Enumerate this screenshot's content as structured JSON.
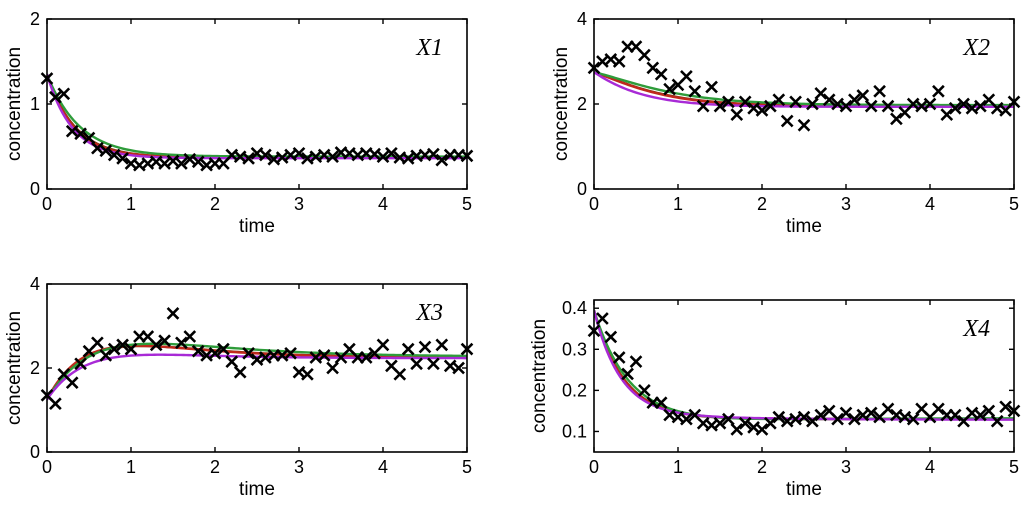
{
  "figure": {
    "background": "#ffffff"
  },
  "series_colors": {
    "red": "#c0281c",
    "green": "#2e9c3a",
    "brown": "#7a3b12",
    "purple": "#a82ad6",
    "data": "#000000"
  },
  "chart_data": [
    {
      "type": "line",
      "title": "X1",
      "xlabel": "time",
      "ylabel": "concentration",
      "xlim": [
        0,
        5
      ],
      "ylim": [
        0,
        2
      ],
      "xticks": [
        "0",
        "1",
        "2",
        "3",
        "4",
        "5"
      ],
      "yticks": [
        "0",
        "1",
        "2"
      ],
      "fit": {
        "y0": 1.35,
        "ye": 0.37,
        "k": 3.0,
        "ov": 0.0,
        "w": 0.0
      },
      "scatter": {
        "x": [
          0.0,
          0.1,
          0.2,
          0.3,
          0.4,
          0.5,
          0.6,
          0.7,
          0.8,
          0.9,
          1.0,
          1.1,
          1.2,
          1.3,
          1.4,
          1.5,
          1.6,
          1.7,
          1.8,
          1.9,
          2.0,
          2.1,
          2.2,
          2.3,
          2.4,
          2.5,
          2.6,
          2.7,
          2.8,
          2.9,
          3.0,
          3.1,
          3.2,
          3.3,
          3.4,
          3.5,
          3.6,
          3.7,
          3.8,
          3.9,
          4.0,
          4.1,
          4.2,
          4.3,
          4.4,
          4.5,
          4.6,
          4.7,
          4.8,
          4.9,
          5.0
        ],
        "y": [
          1.3,
          1.08,
          1.12,
          0.68,
          0.65,
          0.6,
          0.48,
          0.45,
          0.4,
          0.36,
          0.3,
          0.28,
          0.3,
          0.32,
          0.3,
          0.33,
          0.3,
          0.35,
          0.32,
          0.28,
          0.3,
          0.3,
          0.4,
          0.38,
          0.36,
          0.42,
          0.4,
          0.35,
          0.37,
          0.4,
          0.42,
          0.36,
          0.38,
          0.4,
          0.38,
          0.43,
          0.42,
          0.4,
          0.42,
          0.41,
          0.38,
          0.42,
          0.37,
          0.36,
          0.39,
          0.4,
          0.41,
          0.34,
          0.4,
          0.4,
          0.39
        ]
      }
    },
    {
      "type": "line",
      "title": "X2",
      "xlabel": "time",
      "ylabel": "concentration",
      "xlim": [
        0,
        5
      ],
      "ylim": [
        0,
        4
      ],
      "xticks": [
        "0",
        "1",
        "2",
        "3",
        "4",
        "5"
      ],
      "yticks": [
        "0",
        "2",
        "4"
      ],
      "fit": {
        "y0": 2.75,
        "ye": 1.95,
        "k": 2.2,
        "ov": 1.1,
        "w": 0.0
      },
      "scatter": {
        "x": [
          0.0,
          0.1,
          0.2,
          0.3,
          0.4,
          0.5,
          0.6,
          0.7,
          0.8,
          0.9,
          1.0,
          1.1,
          1.2,
          1.3,
          1.4,
          1.5,
          1.6,
          1.7,
          1.8,
          1.9,
          2.0,
          2.1,
          2.2,
          2.3,
          2.4,
          2.5,
          2.6,
          2.7,
          2.8,
          2.9,
          3.0,
          3.1,
          3.2,
          3.3,
          3.4,
          3.5,
          3.6,
          3.7,
          3.8,
          3.9,
          4.0,
          4.1,
          4.2,
          4.3,
          4.4,
          4.5,
          4.6,
          4.7,
          4.8,
          4.9,
          5.0
        ],
        "y": [
          2.85,
          3.0,
          3.05,
          3.0,
          3.35,
          3.35,
          3.15,
          2.85,
          2.7,
          2.35,
          2.45,
          2.65,
          2.3,
          1.95,
          2.4,
          1.95,
          2.05,
          1.75,
          2.05,
          1.9,
          1.85,
          1.95,
          2.1,
          1.6,
          2.05,
          1.5,
          2.0,
          2.25,
          2.1,
          2.0,
          1.95,
          2.1,
          2.2,
          1.95,
          2.3,
          1.95,
          1.65,
          1.8,
          2.0,
          1.95,
          2.0,
          2.3,
          1.75,
          1.9,
          2.0,
          1.9,
          1.95,
          2.1,
          1.9,
          1.85,
          2.05
        ]
      }
    },
    {
      "type": "line",
      "title": "X3",
      "xlabel": "time",
      "ylabel": "concentration",
      "xlim": [
        0,
        5
      ],
      "ylim": [
        0,
        4
      ],
      "xticks": [
        "0",
        "1",
        "2",
        "3",
        "4",
        "5"
      ],
      "yticks": [
        "0",
        "2",
        "4"
      ],
      "fit": {
        "y0": 1.25,
        "ye": 2.25,
        "k": 1.5,
        "ov": 2.2,
        "w": 0.0
      },
      "scatter": {
        "x": [
          0.0,
          0.1,
          0.2,
          0.3,
          0.4,
          0.5,
          0.6,
          0.7,
          0.8,
          0.9,
          1.0,
          1.1,
          1.2,
          1.3,
          1.4,
          1.5,
          1.6,
          1.7,
          1.8,
          1.9,
          2.0,
          2.1,
          2.2,
          2.3,
          2.4,
          2.5,
          2.6,
          2.7,
          2.8,
          2.9,
          3.0,
          3.1,
          3.2,
          3.3,
          3.4,
          3.5,
          3.6,
          3.7,
          3.8,
          3.9,
          4.0,
          4.1,
          4.2,
          4.3,
          4.4,
          4.5,
          4.6,
          4.7,
          4.8,
          4.9,
          5.0
        ],
        "y": [
          1.35,
          1.15,
          1.85,
          1.65,
          2.1,
          2.4,
          2.6,
          2.3,
          2.45,
          2.55,
          2.45,
          2.75,
          2.75,
          2.55,
          2.65,
          3.3,
          2.6,
          2.75,
          2.4,
          2.3,
          2.35,
          2.45,
          2.15,
          1.9,
          2.35,
          2.2,
          2.25,
          2.3,
          2.3,
          2.35,
          1.9,
          1.85,
          2.25,
          2.3,
          2.0,
          2.25,
          2.45,
          2.25,
          2.25,
          2.35,
          2.55,
          2.05,
          1.85,
          2.45,
          2.1,
          2.5,
          2.1,
          2.55,
          2.05,
          2.0,
          2.45
        ]
      }
    },
    {
      "type": "line",
      "title": "X4",
      "xlabel": "time",
      "ylabel": "concentration",
      "xlim": [
        0,
        5
      ],
      "ylim": [
        0.05,
        0.42
      ],
      "xticks": [
        "0",
        "1",
        "2",
        "3",
        "4",
        "5"
      ],
      "yticks": [
        "0.1",
        "0.2",
        "0.3",
        "0.4"
      ],
      "fit": {
        "y0": 0.395,
        "ye": 0.13,
        "k": 2.8,
        "ov": 0.0,
        "w": 0.015
      },
      "scatter": {
        "x": [
          0.0,
          0.1,
          0.2,
          0.3,
          0.4,
          0.5,
          0.6,
          0.7,
          0.8,
          0.9,
          1.0,
          1.1,
          1.2,
          1.3,
          1.4,
          1.5,
          1.6,
          1.7,
          1.8,
          1.9,
          2.0,
          2.1,
          2.2,
          2.3,
          2.4,
          2.5,
          2.6,
          2.7,
          2.8,
          2.9,
          3.0,
          3.1,
          3.2,
          3.3,
          3.4,
          3.5,
          3.6,
          3.7,
          3.8,
          3.9,
          4.0,
          4.1,
          4.2,
          4.3,
          4.4,
          4.5,
          4.6,
          4.7,
          4.8,
          4.9,
          5.0
        ],
        "y": [
          0.345,
          0.375,
          0.33,
          0.28,
          0.24,
          0.27,
          0.2,
          0.17,
          0.17,
          0.14,
          0.135,
          0.13,
          0.14,
          0.12,
          0.115,
          0.12,
          0.13,
          0.105,
          0.12,
          0.11,
          0.105,
          0.12,
          0.135,
          0.125,
          0.13,
          0.135,
          0.125,
          0.14,
          0.15,
          0.13,
          0.145,
          0.13,
          0.14,
          0.145,
          0.135,
          0.155,
          0.14,
          0.135,
          0.13,
          0.155,
          0.135,
          0.155,
          0.14,
          0.14,
          0.125,
          0.145,
          0.14,
          0.15,
          0.125,
          0.16,
          0.15
        ]
      }
    }
  ]
}
